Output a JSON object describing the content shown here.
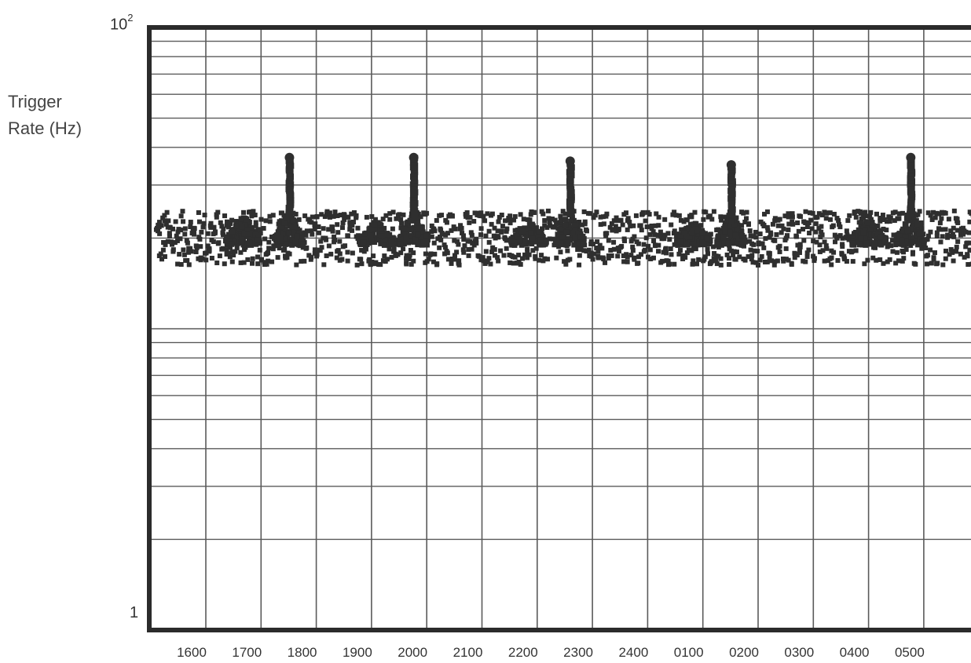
{
  "chart_data": {
    "type": "scatter",
    "title": "",
    "ylabel": "Trigger Rate (Hz)",
    "ylabel_lines": [
      "Trigger",
      "Rate (Hz)"
    ],
    "xlabel": "",
    "yscale": "log",
    "ylim": [
      1,
      100
    ],
    "ytick_labels": {
      "top_base": "10",
      "top_exp": "2",
      "bottom": "1"
    },
    "grid": true,
    "x_categories": [
      "1600",
      "1700",
      "1800",
      "1900",
      "2000",
      "2100",
      "2200",
      "2300",
      "2400",
      "0100",
      "0200",
      "0300",
      "0400",
      "0500"
    ],
    "baseline_rate_hz": 20,
    "bursts": [
      {
        "center_time": "1640",
        "peak_hz": 24
      },
      {
        "center_time": "1730",
        "peak_hz": 37
      },
      {
        "center_time": "1905",
        "peak_hz": 23
      },
      {
        "center_time": "1945",
        "peak_hz": 37
      },
      {
        "center_time": "2150",
        "peak_hz": 23
      },
      {
        "center_time": "2235",
        "peak_hz": 36
      },
      {
        "center_time": "0050",
        "peak_hz": 23
      },
      {
        "center_time": "0130",
        "peak_hz": 35
      },
      {
        "center_time": "0400",
        "peak_hz": 23
      },
      {
        "center_time": "0445",
        "peak_hz": 37
      }
    ],
    "marker_color": "#2f2f2f",
    "grid_color": "#5a5a5a",
    "frame_color": "#2b2b2b"
  }
}
